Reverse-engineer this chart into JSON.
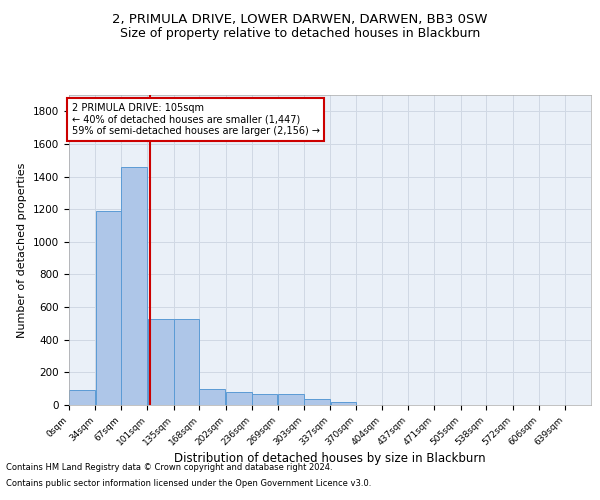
{
  "title1": "2, PRIMULA DRIVE, LOWER DARWEN, DARWEN, BB3 0SW",
  "title2": "Size of property relative to detached houses in Blackburn",
  "xlabel": "Distribution of detached houses by size in Blackburn",
  "ylabel": "Number of detached properties",
  "footer1": "Contains HM Land Registry data © Crown copyright and database right 2024.",
  "footer2": "Contains public sector information licensed under the Open Government Licence v3.0.",
  "annotation_line1": "2 PRIMULA DRIVE: 105sqm",
  "annotation_line2": "← 40% of detached houses are smaller (1,447)",
  "annotation_line3": "59% of semi-detached houses are larger (2,156) →",
  "bar_edges": [
    0,
    34,
    67,
    101,
    135,
    168,
    202,
    236,
    269,
    303,
    337,
    370,
    404,
    437,
    471,
    505,
    538,
    572,
    606,
    639,
    673
  ],
  "bar_heights": [
    90,
    1190,
    1460,
    530,
    530,
    100,
    80,
    70,
    70,
    35,
    20,
    0,
    0,
    0,
    0,
    0,
    0,
    0,
    0,
    0
  ],
  "bar_color": "#aec6e8",
  "bar_edgecolor": "#5b9bd5",
  "grid_color": "#d0d8e4",
  "vline_x": 105,
  "vline_color": "#cc0000",
  "ylim": [
    0,
    1900
  ],
  "yticks": [
    0,
    200,
    400,
    600,
    800,
    1000,
    1200,
    1400,
    1600,
    1800
  ],
  "background_color": "#eaf0f8",
  "plot_bg_color": "#eaf0f8",
  "annotation_box_color": "#ffffff",
  "annotation_box_edgecolor": "#cc0000",
  "title1_fontsize": 9.5,
  "title2_fontsize": 9,
  "xlabel_fontsize": 8.5,
  "ylabel_fontsize": 8
}
